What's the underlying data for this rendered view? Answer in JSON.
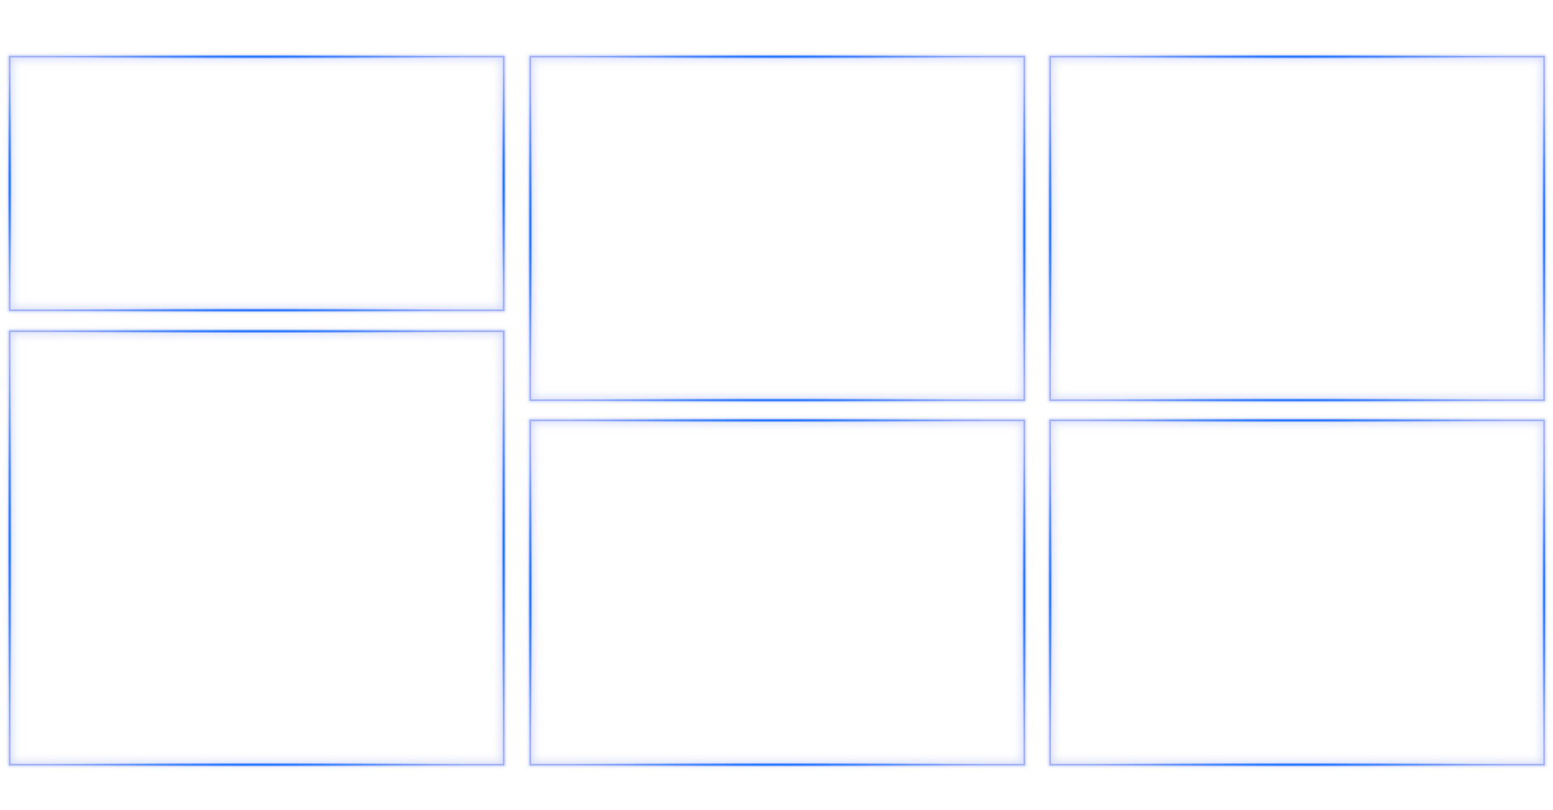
{
  "layout": {
    "name": "empty-panel-grid",
    "panels": [
      {
        "id": "panel-1",
        "role": "panel-top-left"
      },
      {
        "id": "panel-2",
        "role": "panel-bottom-left"
      },
      {
        "id": "panel-3",
        "role": "panel-top-middle"
      },
      {
        "id": "panel-4",
        "role": "panel-bottom-middle"
      },
      {
        "id": "panel-5",
        "role": "panel-top-right"
      },
      {
        "id": "panel-6",
        "role": "panel-bottom-right"
      }
    ]
  },
  "colors": {
    "background": "#ffffff",
    "panel_border": "#9fb0f5",
    "edge_glow": "#0064ff"
  }
}
